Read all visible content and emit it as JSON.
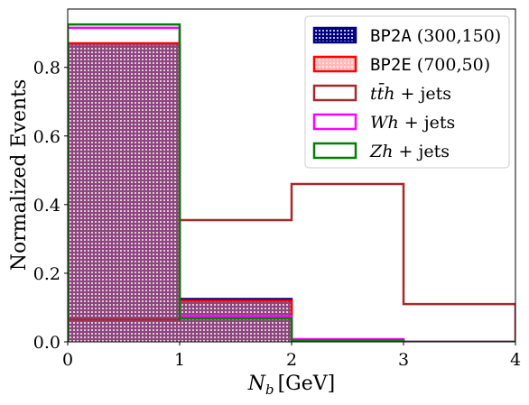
{
  "chart_data": {
    "type": "bar",
    "bin_edges": [
      0,
      1,
      2,
      3,
      4
    ],
    "xlabel": "N_b [GeV]",
    "xlabel_main": "N",
    "xlabel_sub": "b",
    "xlabel_unit": "[GeV]",
    "ylabel": "Normalized Events",
    "xlim": [
      0,
      4
    ],
    "ylim": [
      0,
      0.97
    ],
    "xticks": [
      "0",
      "1",
      "2",
      "3",
      "4"
    ],
    "yticks": [
      "0.0",
      "0.2",
      "0.4",
      "0.6",
      "0.8"
    ],
    "ytick_values": [
      0,
      0.2,
      0.4,
      0.6,
      0.8
    ],
    "grid": false,
    "legend_position": "top-right",
    "series": [
      {
        "name": "BP2A (300,150)",
        "label_code": "BP2A",
        "label_rest": " (300,150)",
        "color": "#000080",
        "style": "filled-hatched",
        "values": [
          0.865,
          0.125,
          0.0,
          0.0
        ]
      },
      {
        "name": "BP2E (700,50)",
        "label_code": "BP2E",
        "label_rest": " (700,50)",
        "color": "#ff0000",
        "style": "filled-hatched",
        "values": [
          0.87,
          0.12,
          0.0,
          0.0
        ]
      },
      {
        "name": "tt̄h + jets",
        "label_math": "tt̄h",
        "label_rest": " + jets",
        "color": "#a52a2a",
        "style": "step",
        "values": [
          0.065,
          0.355,
          0.46,
          0.11
        ]
      },
      {
        "name": "Wh + jets",
        "label_math": "Wh",
        "label_rest": " + jets",
        "color": "#ff00ff",
        "style": "step",
        "values": [
          0.915,
          0.075,
          0.008,
          0.0
        ]
      },
      {
        "name": "Zh + jets",
        "label_math": "Zh",
        "label_rest": " + jets",
        "color": "#008000",
        "style": "step",
        "values": [
          0.925,
          0.068,
          0.004,
          0.0
        ]
      }
    ]
  }
}
